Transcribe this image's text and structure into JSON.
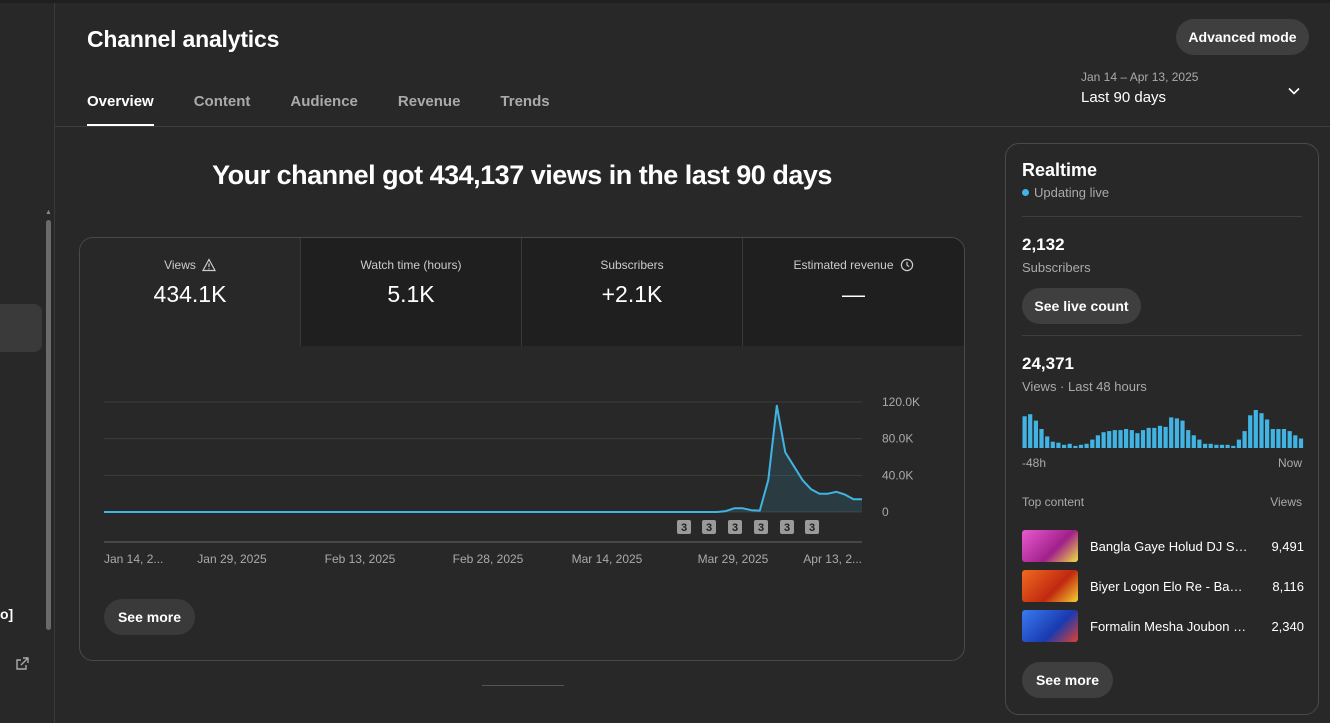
{
  "header": {
    "title": "Channel analytics",
    "advanced_mode_label": "Advanced mode",
    "tabs": [
      {
        "label": "Overview",
        "active": true
      },
      {
        "label": "Content",
        "active": false
      },
      {
        "label": "Audience",
        "active": false
      },
      {
        "label": "Revenue",
        "active": false
      },
      {
        "label": "Trends",
        "active": false
      }
    ],
    "date_range": "Jan 14 – Apr 13, 2025",
    "date_label": "Last 90 days"
  },
  "sidebar": {
    "clipped_text": "o]"
  },
  "headline": "Your channel got 434,137 views in the last 90 days",
  "metrics": [
    {
      "label": "Views",
      "value": "434.1K",
      "icon": "warning-icon"
    },
    {
      "label": "Watch time (hours)",
      "value": "5.1K",
      "icon": ""
    },
    {
      "label": "Subscribers",
      "value": "+2.1K",
      "icon": ""
    },
    {
      "label": "Estimated revenue",
      "value": "—",
      "icon": "clock-icon"
    }
  ],
  "chart_data": {
    "type": "area",
    "series": [
      {
        "x": [
          "Jan 14",
          "Jan 16",
          "Jan 18",
          "Jan 20",
          "Jan 22",
          "Jan 24",
          "Jan 26",
          "Jan 28",
          "Jan 30",
          "Feb 1",
          "Feb 3",
          "Feb 5",
          "Feb 7",
          "Feb 9",
          "Feb 11",
          "Feb 13",
          "Feb 15",
          "Feb 17",
          "Feb 19",
          "Feb 21",
          "Feb 23",
          "Feb 25",
          "Feb 27",
          "Mar 1",
          "Mar 3",
          "Mar 5",
          "Mar 7",
          "Mar 9",
          "Mar 11",
          "Mar 13",
          "Mar 15",
          "Mar 17",
          "Mar 19",
          "Mar 21",
          "Mar 23",
          "Mar 25",
          "Mar 27",
          "Mar 28",
          "Mar 29",
          "Mar 30",
          "Mar 31",
          "Apr 1",
          "Apr 2",
          "Apr 3",
          "Apr 4",
          "Apr 5",
          "Apr 6",
          "Apr 7",
          "Apr 8",
          "Apr 9",
          "Apr 10",
          "Apr 11",
          "Apr 12",
          "Apr 13"
        ],
        "values": [
          0,
          0,
          0,
          0,
          0,
          0,
          0,
          0,
          0,
          0,
          0,
          0,
          0,
          0,
          0,
          0,
          0,
          0,
          0,
          0,
          0,
          0,
          0,
          0,
          0,
          0,
          0,
          0,
          0,
          0,
          0,
          0,
          0,
          0,
          0,
          0,
          0,
          1000,
          4000,
          4000,
          2000,
          1500,
          35000,
          116000,
          65000,
          50000,
          35000,
          25000,
          20000,
          20000,
          22000,
          19000,
          14000,
          14000
        ]
      }
    ],
    "x_tick_labels": [
      "Jan 14, 2...",
      "Jan 29, 2025",
      "Feb 13, 2025",
      "Feb 28, 2025",
      "Mar 14, 2025",
      "Mar 29, 2025",
      "Apr 13, 2..."
    ],
    "y_tick_labels": [
      "0",
      "40.0K",
      "80.0K",
      "120.0K"
    ],
    "ylim": [
      0,
      120000
    ],
    "grid": true,
    "markers": [
      "3",
      "3",
      "3",
      "3",
      "3",
      "3"
    ]
  },
  "main_see_more_label": "See more",
  "realtime": {
    "title": "Realtime",
    "live_label": "Updating live",
    "subscribers_value": "2,132",
    "subscribers_label": "Subscribers",
    "live_count_label": "See live count",
    "views_value": "24,371",
    "views_label": "Views · Last 48 hours",
    "mini_chart_data": {
      "type": "bar",
      "values": [
        30,
        32,
        26,
        18,
        11,
        6,
        5,
        3,
        4,
        2,
        3,
        4,
        8,
        12,
        15,
        16,
        17,
        17,
        18,
        17,
        14,
        17,
        19,
        19,
        21,
        20,
        29,
        28,
        26,
        17,
        12,
        8,
        4,
        4,
        3,
        3,
        3,
        2,
        8,
        16,
        31,
        36,
        33,
        27,
        18,
        18,
        18,
        16,
        12,
        9
      ],
      "start_label": "-48h",
      "end_label": "Now"
    },
    "top_content_label": "Top content",
    "views_col_label": "Views",
    "top_content": [
      {
        "title": "Bangla Gaye Holud DJ Song | ...",
        "views": "9,491",
        "thumb_color": "#d43ab0"
      },
      {
        "title": "Biyer Logon Elo Re - Bangla ...",
        "views": "8,116",
        "thumb_color": "#e04a18"
      },
      {
        "title": "Formalin Mesha Joubon | ...",
        "views": "2,340",
        "thumb_color": "#2a5fd8"
      }
    ],
    "see_more_label": "See more"
  },
  "colors": {
    "accent": "#41b4e3",
    "background": "#282828",
    "card_border": "#4a4a4a"
  }
}
